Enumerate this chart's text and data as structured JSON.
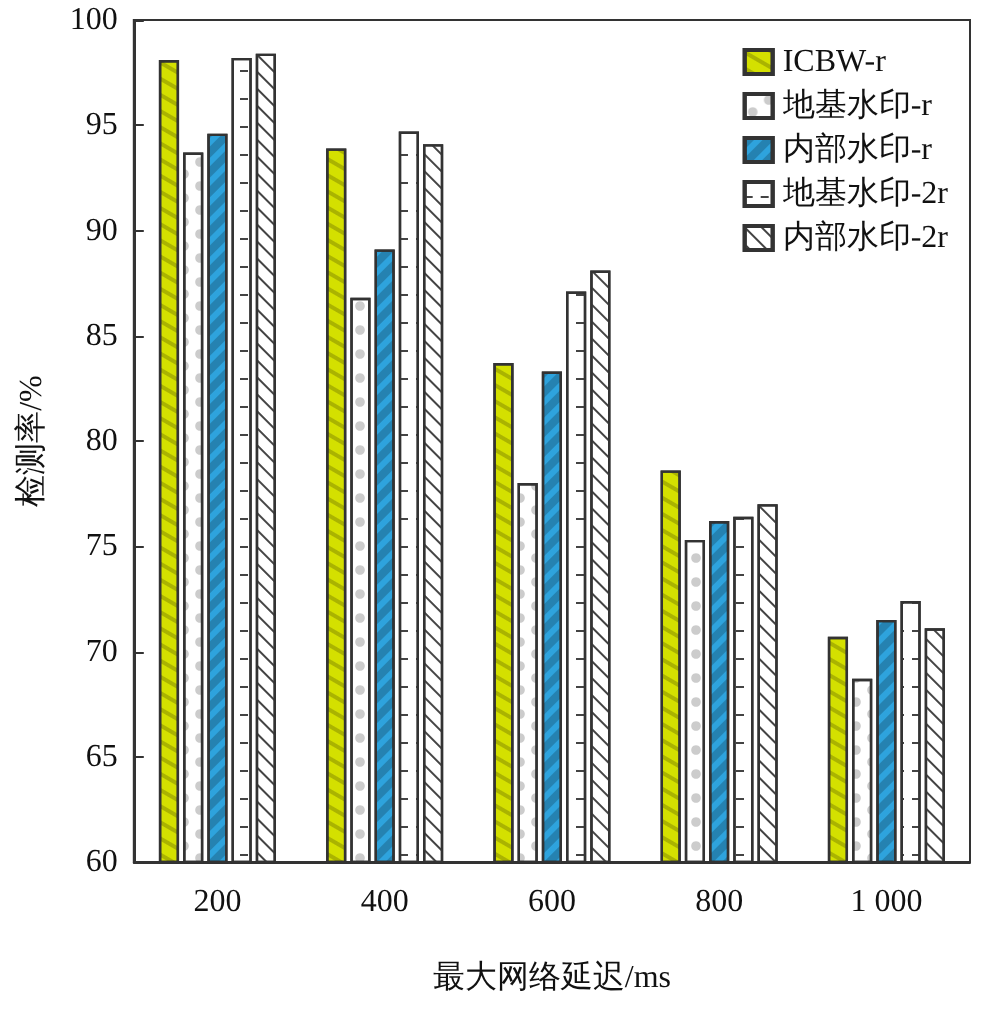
{
  "chart_data": {
    "type": "bar",
    "xlabel": "最大网络延迟/ms",
    "ylabel": "检测率/%",
    "categories": [
      "200",
      "400",
      "600",
      "800",
      "1 000"
    ],
    "series": [
      {
        "name": "ICBW-r",
        "color": "#d4e000",
        "values": [
          98.1,
          93.9,
          83.7,
          78.6,
          70.7
        ]
      },
      {
        "name": "地基水印-r",
        "color": "#ffffff",
        "values": [
          93.7,
          86.8,
          78.0,
          75.3,
          68.7
        ]
      },
      {
        "name": "内部水印-r",
        "color": "#2ea3dd",
        "values": [
          94.6,
          89.1,
          83.3,
          76.2,
          71.5
        ]
      },
      {
        "name": "地基水印-2r",
        "color": "#ffffff",
        "values": [
          98.2,
          94.7,
          87.1,
          76.4,
          72.4
        ]
      },
      {
        "name": "内部水印-2r",
        "color": "#ffffff",
        "values": [
          98.4,
          94.1,
          88.1,
          77.0,
          71.1
        ]
      }
    ],
    "ylim": [
      60,
      100
    ],
    "yticks": [
      60,
      65,
      70,
      75,
      80,
      85,
      90,
      95,
      100
    ],
    "grid": false,
    "legend": "top right"
  }
}
